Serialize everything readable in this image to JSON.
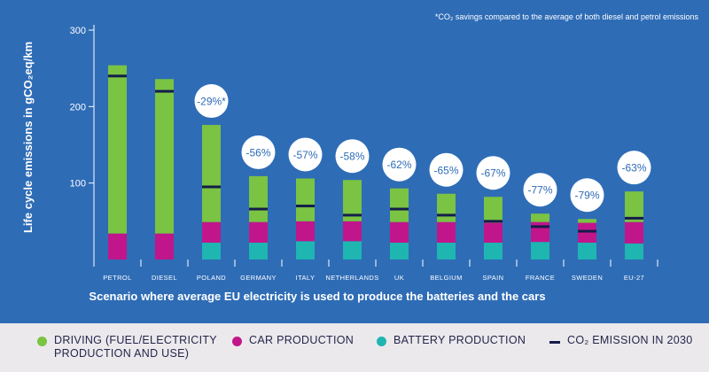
{
  "footnote": "*CO₂ savings compared to the average of both diesel and petrol emissions",
  "chart_data": {
    "type": "bar",
    "stacked": true,
    "ylabel": "Life cycle emissions in gCO₂eq/km",
    "xlabel": "Scenario where average EU electricity is used to produce the batteries and the cars",
    "ylim": [
      0,
      300
    ],
    "yticks": [
      100,
      200,
      300
    ],
    "categories": [
      "PETROL",
      "DIESEL",
      "POLAND",
      "GERMANY",
      "ITALY",
      "NETHERLANDS",
      "UK",
      "BELGIUM",
      "SPAIN",
      "FRANCE",
      "SWEDEN",
      "EU-27"
    ],
    "series": [
      {
        "name": "BATTERY PRODUCTION",
        "color": "#1fb5b0",
        "values": [
          0,
          0,
          22,
          22,
          24,
          24,
          22,
          22,
          22,
          23,
          22,
          21
        ]
      },
      {
        "name": "CAR PRODUCTION",
        "color": "#c1168b",
        "values": [
          34,
          34,
          27,
          27,
          26,
          26,
          27,
          27,
          26,
          26,
          26,
          28
        ]
      },
      {
        "name": "DRIVING (FUEL/ELECTRICITY PRODUCTION AND USE)",
        "color": "#7ac343",
        "values": [
          220,
          202,
          127,
          60,
          56,
          54,
          44,
          37,
          34,
          11,
          5,
          40
        ]
      }
    ],
    "co2_2030": {
      "name": "CO₂ EMISSION IN 2030",
      "color": "#141d4a",
      "values": [
        240,
        220,
        95,
        66,
        70,
        58,
        66,
        58,
        50,
        43,
        37,
        54
      ]
    },
    "savings_labels": [
      "",
      "",
      "-29%*",
      "-56%",
      "-57%",
      "-58%",
      "-62%",
      "-65%",
      "-67%",
      "-77%",
      "-79%",
      "-63%"
    ],
    "grid": false,
    "legend_position": "bottom"
  },
  "legend": {
    "items": [
      {
        "label": "DRIVING (FUEL/ELECTRICITY\nPRODUCTION AND USE)",
        "color": "#7ac343",
        "kind": "dot"
      },
      {
        "label": "CAR PRODUCTION",
        "color": "#c1168b",
        "kind": "dot"
      },
      {
        "label": "BATTERY PRODUCTION",
        "color": "#1fb5b0",
        "kind": "dot"
      },
      {
        "label": "CO₂ EMISSION IN 2030",
        "color": "#141d4a",
        "kind": "line"
      }
    ]
  }
}
